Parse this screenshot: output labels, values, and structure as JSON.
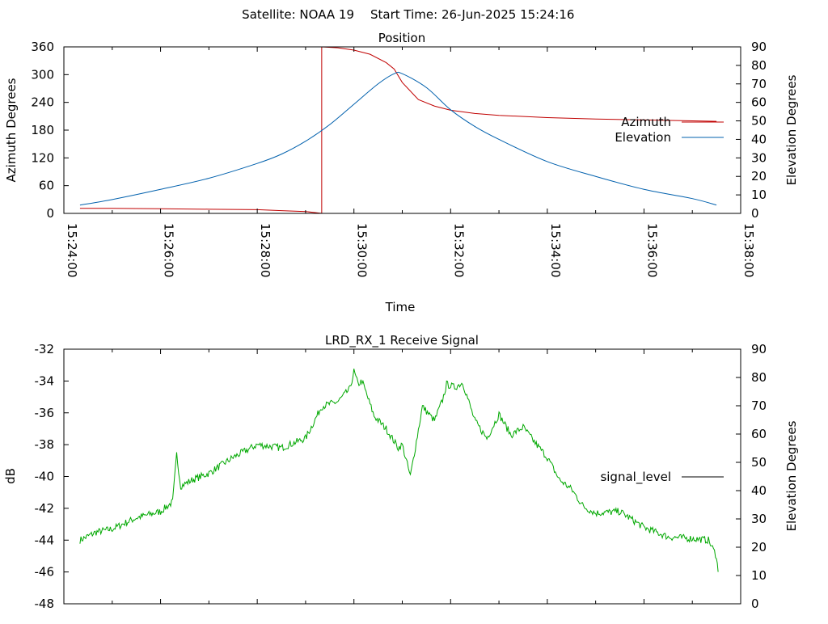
{
  "header": {
    "satellite_label": "Satellite: NOAA 19",
    "start_time_label": "Start Time: 26-Jun-2025 15:24:16"
  },
  "colors": {
    "azimuth": "#c00000",
    "elevation": "#0060ad",
    "signal": "#00a800",
    "legend_signal_line": "#000000"
  },
  "chart_data": [
    {
      "type": "line",
      "title": "Position",
      "xlabel": "Time",
      "ylabel": "Azimuth Degrees",
      "y2label": "Elevation Degrees",
      "xlim": [
        "15:24:00",
        "15:38:00"
      ],
      "ylim": [
        0,
        360
      ],
      "y2lim": [
        0,
        90
      ],
      "x_ticks": [
        "15:24:00",
        "15:26:00",
        "15:28:00",
        "15:30:00",
        "15:32:00",
        "15:34:00",
        "15:36:00",
        "15:38:00"
      ],
      "y_ticks": [
        "0",
        "60",
        "120",
        "180",
        "240",
        "300",
        "360"
      ],
      "y2_ticks": [
        "0",
        "10",
        "20",
        "30",
        "40",
        "50",
        "60",
        "70",
        "80",
        "90"
      ],
      "legend_position": "right",
      "series": [
        {
          "name": "Azimuth",
          "axis": "y",
          "x": [
            "15:24:20",
            "15:25:00",
            "15:26:00",
            "15:27:00",
            "15:28:00",
            "15:28:30",
            "15:29:00",
            "15:29:15",
            "15:29:20",
            "15:29:20",
            "15:29:40",
            "15:30:00",
            "15:30:20",
            "15:30:40",
            "15:30:50",
            "15:31:00",
            "15:31:20",
            "15:31:40",
            "15:32:00",
            "15:32:30",
            "15:33:00",
            "15:34:00",
            "15:35:00",
            "15:36:00",
            "15:37:00",
            "15:37:30"
          ],
          "values": [
            11,
            11,
            10,
            9,
            8,
            6,
            4,
            1,
            0,
            360,
            358,
            353,
            344,
            326,
            312,
            283,
            246,
            232,
            223,
            216,
            212,
            207,
            204,
            202,
            200,
            199
          ]
        },
        {
          "name": "Elevation",
          "axis": "y2",
          "x": [
            "15:24:20",
            "15:25:00",
            "15:26:00",
            "15:27:00",
            "15:28:00",
            "15:28:30",
            "15:29:00",
            "15:29:30",
            "15:30:00",
            "15:30:30",
            "15:30:50",
            "15:31:00",
            "15:31:30",
            "15:32:00",
            "15:32:30",
            "15:33:00",
            "15:34:00",
            "15:35:00",
            "15:36:00",
            "15:37:00",
            "15:37:30"
          ],
          "values": [
            4.5,
            7.5,
            13,
            19,
            27,
            32,
            39,
            48,
            59,
            70,
            75.5,
            75.5,
            68,
            56,
            47,
            40,
            28,
            20,
            13,
            8,
            4.5
          ]
        }
      ]
    },
    {
      "type": "line",
      "title": "LRD_RX_1 Receive Signal",
      "xlabel": "",
      "ylabel": "dB",
      "y2label": "Elevation Degrees",
      "xlim": [
        "15:24:00",
        "15:38:00"
      ],
      "ylim": [
        -48,
        -32
      ],
      "y2lim": [
        0,
        90
      ],
      "y_ticks": [
        "-32",
        "-34",
        "-36",
        "-38",
        "-40",
        "-42",
        "-44",
        "-46",
        "-48"
      ],
      "y2_ticks": [
        "90",
        "80",
        "70",
        "60",
        "50",
        "40",
        "30",
        "20",
        "10",
        "0"
      ],
      "legend_position": "right",
      "series": [
        {
          "name": "signal_level",
          "x": [
            "15:24:20",
            "15:24:40",
            "15:25:00",
            "15:25:30",
            "15:26:00",
            "15:26:15",
            "15:26:20",
            "15:26:25",
            "15:26:40",
            "15:27:00",
            "15:27:30",
            "15:28:00",
            "15:28:30",
            "15:29:00",
            "15:29:20",
            "15:29:40",
            "15:29:55",
            "15:30:00",
            "15:30:05",
            "15:30:10",
            "15:30:25",
            "15:30:40",
            "15:30:55",
            "15:31:00",
            "15:31:10",
            "15:31:25",
            "15:31:40",
            "15:31:50",
            "15:31:55",
            "15:32:05",
            "15:32:15",
            "15:32:30",
            "15:32:45",
            "15:33:00",
            "15:33:15",
            "15:33:30",
            "15:33:45",
            "15:34:00",
            "15:34:15",
            "15:34:30",
            "15:34:45",
            "15:35:00",
            "15:35:30",
            "15:36:00",
            "15:36:30",
            "15:37:00",
            "15:37:20",
            "15:37:30",
            "15:37:32"
          ],
          "values": [
            -44.0,
            -43.5,
            -43.3,
            -42.6,
            -42.2,
            -41.6,
            -38.6,
            -40.6,
            -40.2,
            -39.8,
            -38.8,
            -38.0,
            -38.2,
            -37.6,
            -35.6,
            -35.3,
            -34.5,
            -33.4,
            -34.2,
            -34.0,
            -36.2,
            -37.0,
            -38.2,
            -38.0,
            -40.0,
            -35.6,
            -36.5,
            -35.2,
            -34.2,
            -34.4,
            -34.1,
            -36.5,
            -37.6,
            -36.1,
            -37.4,
            -36.9,
            -37.9,
            -38.8,
            -40.2,
            -40.8,
            -41.9,
            -42.3,
            -42.2,
            -43.2,
            -43.8,
            -43.9,
            -44.0,
            -45.0,
            -46.0
          ]
        }
      ]
    }
  ]
}
